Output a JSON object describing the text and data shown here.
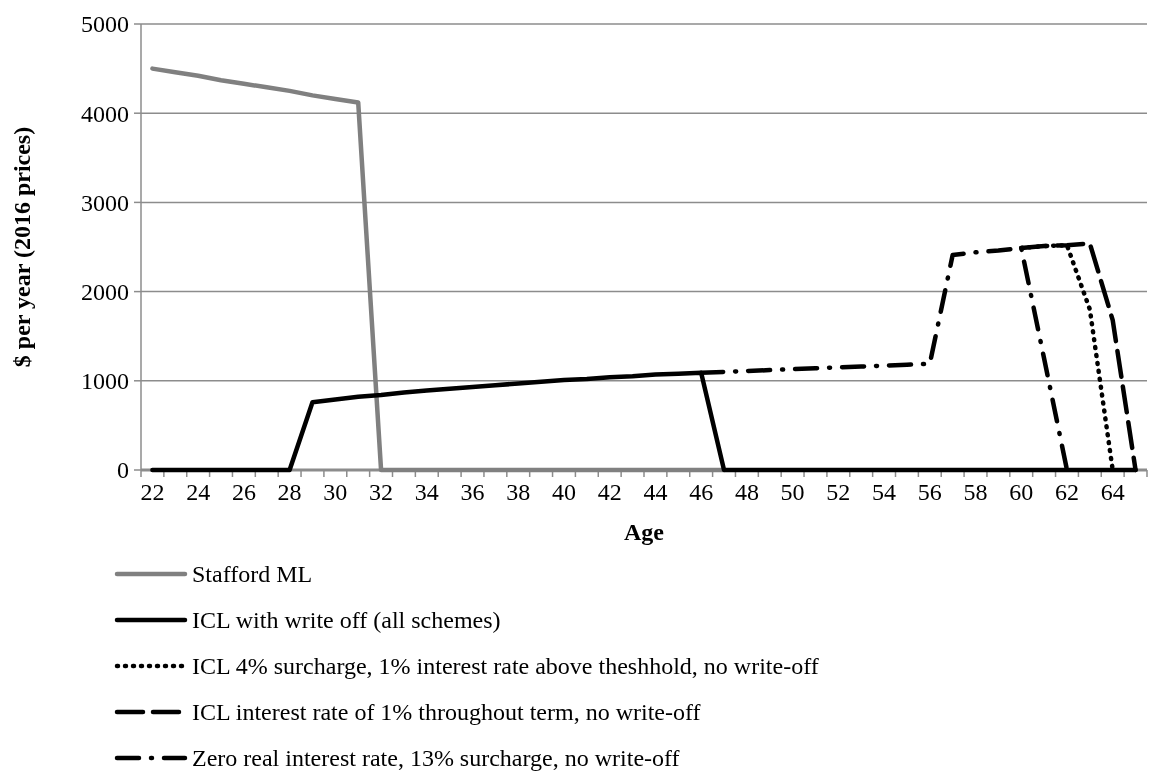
{
  "chart_data": {
    "type": "line",
    "xlabel": "Age",
    "ylabel": "$ per year  (2016 prices)",
    "categories": [
      "22",
      null,
      "24",
      null,
      "26",
      null,
      "28",
      null,
      "30",
      null,
      "32",
      null,
      "34",
      null,
      "36",
      null,
      "38",
      null,
      "40",
      null,
      "42",
      null,
      "44",
      null,
      "46",
      null,
      "48",
      null,
      "50",
      null,
      "52",
      null,
      "54",
      null,
      "56",
      null,
      "58",
      null,
      "60",
      null,
      "62",
      null,
      "64",
      null
    ],
    "ylim": [
      0,
      5000
    ],
    "yticks": [
      0,
      1000,
      2000,
      3000,
      4000,
      5000
    ],
    "grid": "y",
    "legend": "bottom",
    "series": [
      {
        "name": "Stafford ML",
        "color": "#808080",
        "line_style": "solid",
        "values": [
          4500,
          4460,
          4420,
          4370,
          4330,
          4290,
          4250,
          4200,
          4160,
          4120,
          0,
          0,
          0,
          0,
          0,
          0,
          0,
          0,
          0,
          0,
          0,
          0,
          0,
          0,
          0,
          0,
          null,
          null,
          null,
          null,
          null,
          null,
          null,
          null,
          null,
          null,
          null,
          null,
          null,
          null,
          null,
          null,
          null,
          null
        ]
      },
      {
        "name": "ICL with write off (all schemes)",
        "color": "#000000",
        "line_style": "solid",
        "values": [
          0,
          0,
          0,
          0,
          0,
          0,
          0,
          760,
          790,
          820,
          840,
          870,
          890,
          910,
          930,
          950,
          970,
          990,
          1010,
          1020,
          1040,
          1050,
          1070,
          1080,
          1090,
          0,
          0,
          0,
          0,
          0,
          0,
          0,
          0,
          0,
          0,
          0,
          0,
          0,
          0,
          0,
          0,
          0,
          0,
          0
        ]
      },
      {
        "name": "ICL 4% surcharge, 1% interest rate above theshhold, no write-off",
        "color": "#000000",
        "line_style": "dotted",
        "values": [
          null,
          null,
          null,
          null,
          null,
          null,
          null,
          null,
          null,
          null,
          null,
          null,
          null,
          null,
          null,
          null,
          null,
          null,
          null,
          null,
          null,
          null,
          null,
          null,
          null,
          null,
          null,
          null,
          null,
          null,
          null,
          null,
          null,
          null,
          null,
          null,
          null,
          null,
          2490,
          2510,
          2520,
          1800,
          0,
          null
        ]
      },
      {
        "name": "ICL interest rate of 1% throughout term, no write-off",
        "color": "#000000",
        "line_style": "dashed",
        "values": [
          null,
          null,
          null,
          null,
          null,
          null,
          null,
          null,
          null,
          null,
          null,
          null,
          null,
          null,
          null,
          null,
          null,
          null,
          null,
          null,
          null,
          null,
          null,
          null,
          null,
          null,
          null,
          null,
          null,
          null,
          null,
          null,
          null,
          null,
          null,
          null,
          null,
          null,
          2490,
          2510,
          2520,
          2540,
          1680,
          0
        ]
      },
      {
        "name": "Zero real interest rate, 13% surcharge, no write-off",
        "color": "#000000",
        "line_style": "dashdot",
        "values": [
          null,
          null,
          null,
          null,
          null,
          null,
          null,
          null,
          null,
          null,
          null,
          null,
          null,
          null,
          null,
          null,
          null,
          null,
          null,
          null,
          null,
          null,
          null,
          null,
          1090,
          1100,
          1110,
          1120,
          1130,
          1140,
          1150,
          1160,
          1170,
          1180,
          1190,
          2410,
          2440,
          2460,
          2490,
          1250,
          0,
          null,
          null,
          null
        ]
      }
    ]
  }
}
